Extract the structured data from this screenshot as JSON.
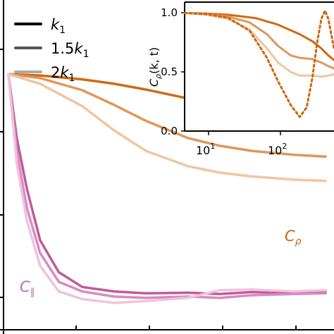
{
  "chart_data": [
    {
      "type": "line",
      "title": "",
      "xlabel": "",
      "ylabel": "",
      "xscale": "log",
      "xlim": [
        0.9,
        1200
      ],
      "ylim": [
        0.6,
        1.05
      ],
      "grid": false,
      "legend": {
        "placement": "top-left",
        "entries": [
          {
            "label_main": "k",
            "label_sub": "1",
            "label_prefix": "",
            "shade": "#000000"
          },
          {
            "label_main": "k",
            "label_sub": "1",
            "label_prefix": "1.5",
            "shade": "#555555"
          },
          {
            "label_main": "k",
            "label_sub": "1",
            "label_prefix": "2",
            "shade": "#aaaaaa"
          }
        ]
      },
      "annotations": {
        "c_rho": {
          "main": "C",
          "sub": "ρ",
          "color": "#c8680e"
        },
        "c_par": {
          "main": "C",
          "sub": "∥",
          "color": "#c36aa6"
        }
      },
      "series": [
        {
          "group": "rho",
          "color": "#d06a12",
          "x": [
            1,
            2,
            5,
            10,
            20,
            50,
            100,
            200,
            500,
            1000
          ],
          "values": [
            1.0,
            0.998,
            0.992,
            0.985,
            0.976,
            0.962,
            0.95,
            0.938,
            0.924,
            0.915
          ]
        },
        {
          "group": "rho",
          "color": "#e1975b",
          "x": [
            1,
            2,
            5,
            10,
            20,
            50,
            100,
            200,
            500,
            1000
          ],
          "values": [
            1.0,
            0.994,
            0.975,
            0.952,
            0.927,
            0.9,
            0.888,
            0.88,
            0.874,
            0.871
          ]
        },
        {
          "group": "rho",
          "color": "#f0c6a0",
          "x": [
            1,
            2,
            5,
            10,
            20,
            50,
            100,
            200,
            500,
            1000
          ],
          "values": [
            1.0,
            0.985,
            0.95,
            0.912,
            0.88,
            0.856,
            0.846,
            0.84,
            0.835,
            0.833
          ]
        },
        {
          "group": "par",
          "color": "#c05a9a",
          "x": [
            1,
            1.2,
            1.5,
            2,
            3,
            5,
            10,
            20,
            50,
            100,
            200,
            500,
            1000
          ],
          "values": [
            1.0,
            0.9,
            0.82,
            0.74,
            0.69,
            0.667,
            0.66,
            0.657,
            0.658,
            0.656,
            0.659,
            0.657,
            0.66
          ]
        },
        {
          "group": "par",
          "color": "#d88cbc",
          "x": [
            1,
            1.2,
            1.5,
            2,
            3,
            5,
            10,
            20,
            50,
            100,
            200,
            500,
            1000
          ],
          "values": [
            1.0,
            0.88,
            0.79,
            0.72,
            0.675,
            0.66,
            0.652,
            0.65,
            0.652,
            0.65,
            0.654,
            0.656,
            0.657
          ]
        },
        {
          "group": "par",
          "color": "#efc3dd",
          "x": [
            1,
            1.2,
            1.5,
            2,
            3,
            5,
            10,
            20,
            50,
            100,
            200,
            500,
            1000
          ],
          "values": [
            1.0,
            0.86,
            0.77,
            0.7,
            0.66,
            0.648,
            0.642,
            0.645,
            0.65,
            0.662,
            0.663,
            0.66,
            0.662
          ]
        }
      ]
    },
    {
      "type": "line",
      "title": "",
      "xlabel": "",
      "ylabel_main": "C",
      "ylabel_sub": "ρ",
      "ylabel_rest": "(k, t)",
      "xscale": "log",
      "xlim": [
        5,
        600
      ],
      "ylim": [
        0.0,
        1.05
      ],
      "yticks": [
        "0.0",
        "0.5",
        "1.0"
      ],
      "xticks": [
        {
          "base": "10",
          "exp": "1"
        },
        {
          "base": "10",
          "exp": "2"
        }
      ],
      "grid": false,
      "series": [
        {
          "color": "#d06a12",
          "style": "solid",
          "x": [
            5,
            10,
            20,
            50,
            100,
            200,
            300,
            400,
            500,
            600
          ],
          "values": [
            1.0,
            0.995,
            0.985,
            0.955,
            0.9,
            0.82,
            0.76,
            0.7,
            0.64,
            0.6
          ]
        },
        {
          "color": "#e1975b",
          "style": "solid",
          "x": [
            5,
            10,
            20,
            40,
            70,
            100,
            150,
            200,
            300,
            400,
            500,
            600
          ],
          "values": [
            1.0,
            0.99,
            0.97,
            0.92,
            0.82,
            0.72,
            0.64,
            0.62,
            0.61,
            0.58,
            0.55,
            0.53
          ]
        },
        {
          "color": "#f0c6a0",
          "style": "solid",
          "x": [
            5,
            10,
            20,
            40,
            70,
            100,
            150,
            200,
            300,
            400,
            500,
            600
          ],
          "values": [
            1.0,
            0.985,
            0.95,
            0.86,
            0.7,
            0.58,
            0.5,
            0.47,
            0.47,
            0.46,
            0.47,
            0.48
          ]
        },
        {
          "color": "#c8680e",
          "style": "dotted",
          "x": [
            5,
            10,
            20,
            40,
            70,
            100,
            150,
            200,
            250,
            300,
            350,
            400,
            450,
            500,
            600
          ],
          "values": [
            1.0,
            0.99,
            0.96,
            0.85,
            0.62,
            0.42,
            0.22,
            0.12,
            0.2,
            0.45,
            0.75,
            0.95,
            1.02,
            0.95,
            0.7
          ]
        }
      ]
    }
  ]
}
